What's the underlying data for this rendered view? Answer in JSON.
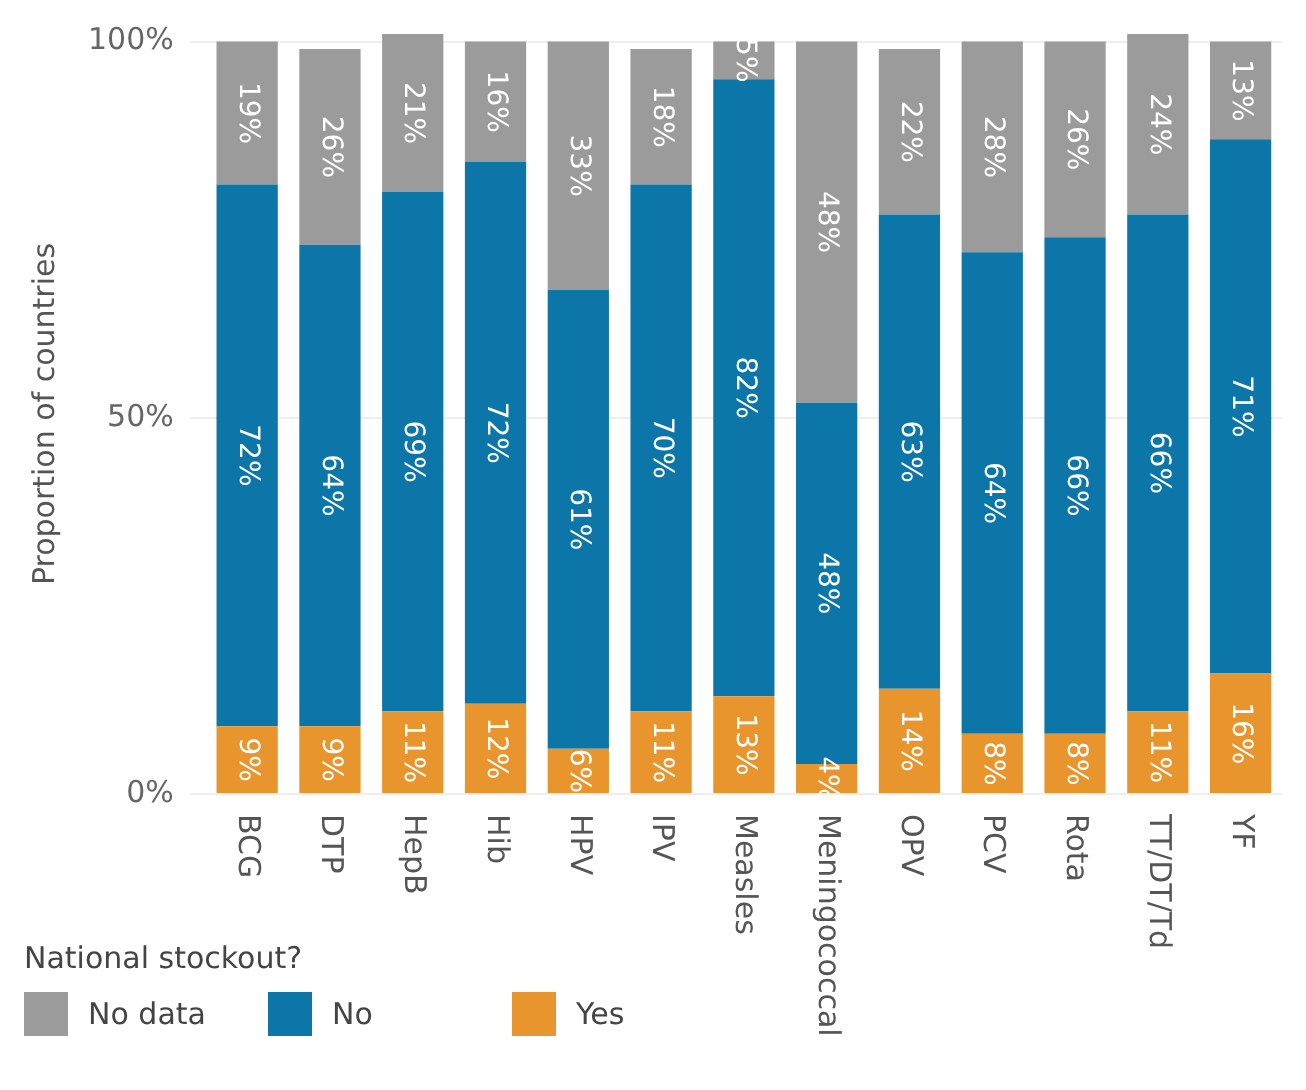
{
  "chart_data": {
    "type": "bar",
    "stacked": true,
    "ylabel": "Proportion of countries",
    "legend_title": "National stockout?",
    "legend": "bottom left",
    "grid": "y",
    "categories": [
      "BCG",
      "DTP",
      "HepB",
      "Hib",
      "HPV",
      "IPV",
      "Measles",
      "Meningococcal",
      "OPV",
      "PCV",
      "Rota",
      "TT/DT/Td",
      "YF"
    ],
    "ylim": [
      0,
      101
    ],
    "yticks": [
      {
        "value": 0,
        "label": "0%"
      },
      {
        "value": 50,
        "label": "50%"
      },
      {
        "value": 100,
        "label": "100%"
      }
    ],
    "series": [
      {
        "name": "Yes",
        "color": "#e8952d",
        "values": [
          9,
          9,
          11,
          12,
          6,
          11,
          13,
          4,
          14,
          8,
          8,
          11,
          16
        ],
        "value_labels": [
          "9%",
          "9%",
          "11%",
          "12%",
          "6%",
          "11%",
          "13%",
          "4%",
          "14%",
          "8%",
          "8%",
          "11%",
          "16%"
        ]
      },
      {
        "name": "No",
        "color": "#0c76a8",
        "values": [
          72,
          64,
          69,
          72,
          61,
          70,
          82,
          48,
          63,
          64,
          66,
          66,
          71
        ],
        "value_labels": [
          "72%",
          "64%",
          "69%",
          "72%",
          "61%",
          "70%",
          "82%",
          "48%",
          "63%",
          "64%",
          "66%",
          "66%",
          "71%"
        ]
      },
      {
        "name": "No data",
        "color": "#9b9b9b",
        "values": [
          19,
          26,
          21,
          16,
          33,
          18,
          5,
          48,
          22,
          28,
          26,
          24,
          13
        ],
        "value_labels": [
          "19%",
          "26%",
          "21%",
          "16%",
          "33%",
          "18%",
          "5%",
          "48%",
          "22%",
          "28%",
          "26%",
          "24%",
          "13%"
        ]
      }
    ]
  }
}
